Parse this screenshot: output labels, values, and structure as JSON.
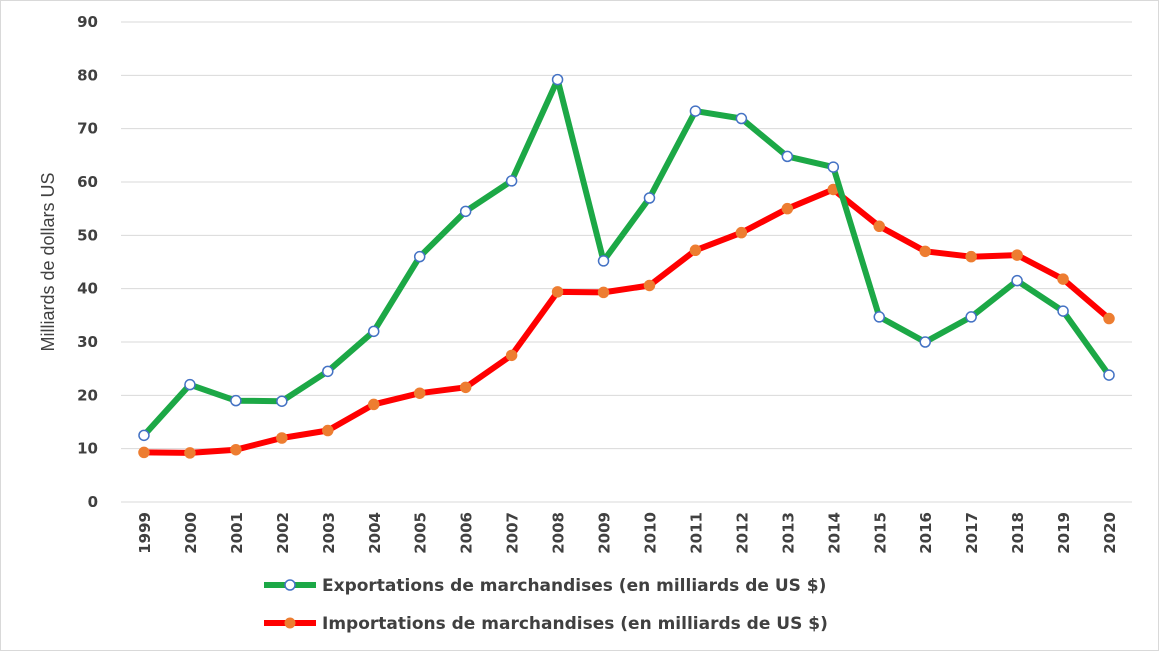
{
  "chart_data": {
    "type": "line",
    "title": "",
    "xlabel": "",
    "ylabel": "Milliards de dollars US",
    "ylim": [
      0,
      90
    ],
    "yticks": [
      0,
      10,
      20,
      30,
      40,
      50,
      60,
      70,
      80,
      90
    ],
    "grid": true,
    "legend_position": "bottom",
    "categories": [
      "1999",
      "2000",
      "2001",
      "2002",
      "2003",
      "2004",
      "2005",
      "2006",
      "2007",
      "2008",
      "2009",
      "2010",
      "2011",
      "2012",
      "2013",
      "2014",
      "2015",
      "2016",
      "2017",
      "2018",
      "2019",
      "2020"
    ],
    "series": [
      {
        "name": "Exportations de marchandises (en milliards de US $)",
        "line_color": "#1ca846",
        "marker_fill": "#ffffff",
        "marker_edge": "#4472c4",
        "values": [
          12.5,
          22,
          19,
          18.9,
          24.5,
          32,
          46,
          54.5,
          60.2,
          79.2,
          45.2,
          57,
          73.3,
          71.9,
          64.8,
          62.8,
          34.7,
          30,
          34.7,
          41.5,
          35.8,
          23.8
        ]
      },
      {
        "name": "Importations de marchandises (en milliards de US $)",
        "line_color": "#ff0000",
        "marker_fill": "#ed7d31",
        "marker_edge": "#ed7d31",
        "values": [
          9.3,
          9.2,
          9.8,
          12,
          13.4,
          18.3,
          20.4,
          21.5,
          27.5,
          39.4,
          39.3,
          40.6,
          47.2,
          50.5,
          55,
          58.6,
          51.7,
          47,
          46,
          46.3,
          41.8,
          34.4
        ]
      }
    ]
  }
}
